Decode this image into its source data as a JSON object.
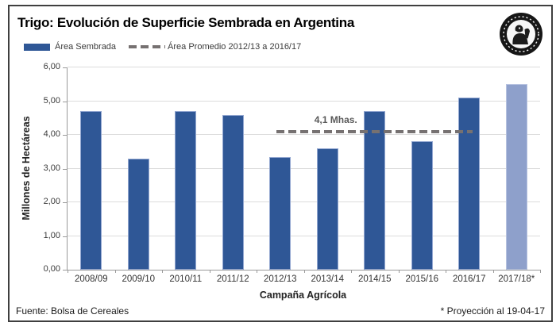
{
  "title": "Trigo: Evolución de Superficie Sembrada en Argentina",
  "legend": {
    "series_label": "Área Sembrada",
    "average_label": "Área Promedio 2012/13 a 2016/17"
  },
  "chart_data": {
    "type": "bar",
    "title": "Trigo: Evolución de Superficie Sembrada en Argentina",
    "categories": [
      "2008/09",
      "2009/10",
      "2010/11",
      "2011/12",
      "2012/13",
      "2013/14",
      "2014/15",
      "2015/16",
      "2016/17",
      "2017/18*"
    ],
    "series": [
      {
        "name": "Área Sembrada",
        "values": [
          4.7,
          3.3,
          4.7,
          4.6,
          3.35,
          3.6,
          4.7,
          3.8,
          5.1,
          5.5
        ]
      }
    ],
    "projected_category": "2017/18*",
    "average_line": {
      "label": "4,1 Mhas.",
      "value": 4.1,
      "from": "2012/13",
      "to": "2016/17"
    },
    "xlabel": "Campaña Agrícola",
    "ylabel": "Millones de Hectáreas",
    "ylim": [
      0,
      6
    ],
    "ytick_labels": [
      "0,00",
      "1,00",
      "2,00",
      "3,00",
      "4,00",
      "5,00",
      "6,00"
    ],
    "grid": true,
    "legend_position": "top-left",
    "colors": {
      "bar": "#2F5796",
      "projected_bar": "#8EA0CB",
      "average_line": "#767171"
    }
  },
  "footer": {
    "source": "Fuente: Bolsa de Cereales",
    "note": "* Proyección al 19-04-17"
  },
  "logo": {
    "name": "Bolsa de Cereales emblem"
  }
}
